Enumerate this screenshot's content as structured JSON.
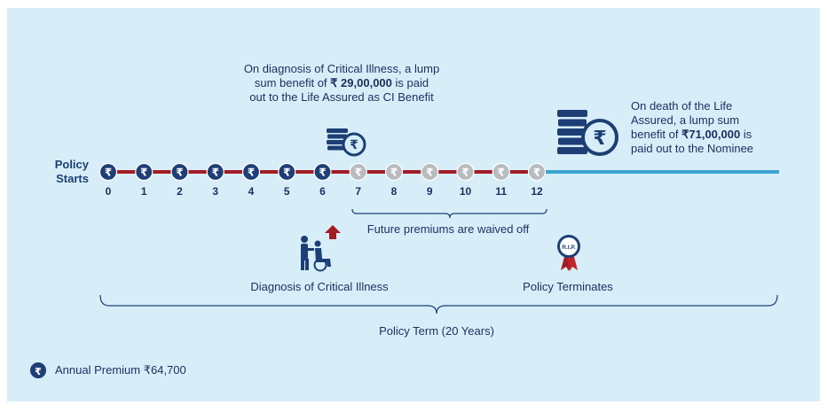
{
  "policy_starts": "Policy\nStarts",
  "ci_note": {
    "line1": "On diagnosis of Critical Illness, a lump",
    "line2_pre": "sum benefit of ",
    "line2_amount": "₹ 29,00,000",
    "line2_post": " is paid",
    "line3": "out to the Life Assured as CI Benefit"
  },
  "death_note": {
    "line1": "On death of the Life",
    "line2": "Assured, a lump sum",
    "line3_pre": "benefit of ",
    "line3_amount": "₹71,00,000",
    "line3_post": " is",
    "line4": "paid out to the Nominee"
  },
  "years": [
    "0",
    "1",
    "2",
    "3",
    "4",
    "5",
    "6",
    "7",
    "8",
    "9",
    "10",
    "11",
    "12"
  ],
  "paid_years": 7,
  "rupee_symbol": "₹",
  "waived_label": "Future premiums are waived off",
  "diagnosis_label": "Diagnosis of Critical Illness",
  "terminates_label": "Policy Terminates",
  "term_label": "Policy Term (20 Years)",
  "legend_label": "Annual Premium ₹64,700",
  "seal_text": "R.I.P.",
  "icons": {
    "paid_coin": "rupee-coin-icon",
    "waived_coin": "grey-rupee-coin-icon",
    "ci_benefit": "coin-stack-icon",
    "death_benefit": "coin-stack-large-icon",
    "patient": "wheelchair-icon",
    "arrow": "red-up-arrow-icon",
    "terminate": "rip-seal-icon"
  },
  "colors": {
    "panel": "#d7eef8",
    "navy": "#1d3f75",
    "red_line": "#a21c25",
    "blue_line": "#3aa4d2",
    "grey": "#b8bcbf",
    "text": "#1d2d5f"
  }
}
